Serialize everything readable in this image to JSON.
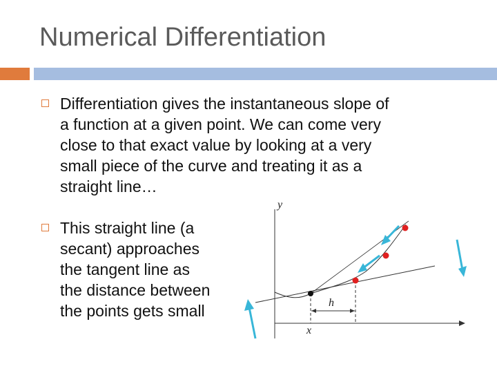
{
  "slide": {
    "title": "Numerical Differentiation",
    "accent_color": "#e07b3c",
    "rule_color": "#a5bde0",
    "bullets": [
      {
        "icon": "hollow-square-bullet-icon",
        "lines": [
          "Differentiation gives the instantaneous slope of",
          "a function at a given point. We can come very",
          "close to that exact value by looking at a very",
          "small piece of the curve and treating it as a",
          "straight line…"
        ]
      },
      {
        "icon": "hollow-square-bullet-icon",
        "lines": [
          "This straight line (a",
          "secant) approaches",
          "the tangent line as",
          "the distance between",
          "the points gets small"
        ]
      }
    ]
  },
  "figure": {
    "y_label": "y",
    "x_label": "x",
    "h_label": "h",
    "point_color": "#e02020",
    "arrow_color": "#38b6d8"
  }
}
